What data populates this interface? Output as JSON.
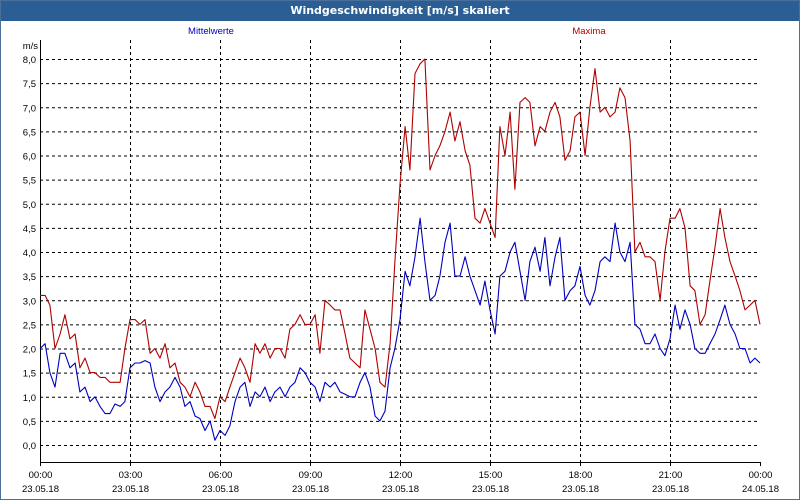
{
  "window": {
    "title": "Windgeschwindigkeit [m/s] skaliert"
  },
  "chart_data": {
    "type": "line",
    "title": "Windgeschwindigkeit [m/s] skaliert",
    "ylabel": "m/s",
    "xlabel": "",
    "ylim": [
      -0.2,
      8.3
    ],
    "yticks": [
      0.0,
      0.5,
      1.0,
      1.5,
      2.0,
      2.5,
      3.0,
      3.5,
      4.0,
      4.5,
      5.0,
      5.5,
      6.0,
      6.5,
      7.0,
      7.5,
      8.0
    ],
    "ytick_labels": [
      "0,0",
      "0,5",
      "1,0",
      "1,5",
      "2,0",
      "2,5",
      "3,0",
      "3,5",
      "4,0",
      "4,5",
      "5,0",
      "5,5",
      "6,0",
      "6,5",
      "7,0",
      "7,5",
      "8,0"
    ],
    "xlim": [
      0,
      24
    ],
    "xticks": [
      {
        "time": "00:00",
        "date": "23.05.18"
      },
      {
        "time": "03:00",
        "date": "23.05.18"
      },
      {
        "time": "06:00",
        "date": "23.05.18"
      },
      {
        "time": "09:00",
        "date": "23.05.18"
      },
      {
        "time": "12:00",
        "date": "23.05.18"
      },
      {
        "time": "15:00",
        "date": "23.05.18"
      },
      {
        "time": "18:00",
        "date": "23.05.18"
      },
      {
        "time": "21:00",
        "date": "23.05.18"
      },
      {
        "time": "00:00",
        "date": "24.05.18"
      }
    ],
    "grid": true,
    "x_hours": [
      0,
      0.17,
      0.33,
      0.5,
      0.67,
      0.83,
      1,
      1.17,
      1.33,
      1.5,
      1.67,
      1.83,
      2,
      2.17,
      2.33,
      2.5,
      2.67,
      2.83,
      3,
      3.17,
      3.33,
      3.5,
      3.67,
      3.83,
      4,
      4.17,
      4.33,
      4.5,
      4.67,
      4.83,
      5,
      5.17,
      5.33,
      5.5,
      5.67,
      5.83,
      6,
      6.17,
      6.33,
      6.5,
      6.67,
      6.83,
      7,
      7.17,
      7.33,
      7.5,
      7.67,
      7.83,
      8,
      8.17,
      8.33,
      8.5,
      8.67,
      8.83,
      9,
      9.17,
      9.33,
      9.5,
      9.67,
      9.83,
      10,
      10.17,
      10.33,
      10.5,
      10.67,
      10.83,
      11,
      11.17,
      11.33,
      11.5,
      11.67,
      11.83,
      12,
      12.17,
      12.33,
      12.5,
      12.67,
      12.83,
      13,
      13.17,
      13.33,
      13.5,
      13.67,
      13.83,
      14,
      14.17,
      14.33,
      14.5,
      14.67,
      14.83,
      15,
      15.17,
      15.33,
      15.5,
      15.67,
      15.83,
      16,
      16.17,
      16.33,
      16.5,
      16.67,
      16.83,
      17,
      17.17,
      17.33,
      17.5,
      17.67,
      17.83,
      18,
      18.17,
      18.33,
      18.5,
      18.67,
      18.83,
      19,
      19.17,
      19.33,
      19.5,
      19.67,
      19.83,
      20,
      20.17,
      20.33,
      20.5,
      20.67,
      20.83,
      21,
      21.17,
      21.33,
      21.5,
      21.67,
      21.83,
      22,
      22.17,
      22.33,
      22.5,
      22.67,
      22.83,
      23,
      23.17,
      23.33,
      23.5,
      23.67,
      23.83,
      24
    ],
    "series": [
      {
        "name": "Mittelwerte",
        "color": "#0000c0",
        "values": [
          2.0,
          2.1,
          1.5,
          1.2,
          1.9,
          1.9,
          1.6,
          1.7,
          1.1,
          1.2,
          0.9,
          1.0,
          0.8,
          0.65,
          0.65,
          0.85,
          0.8,
          0.9,
          1.6,
          1.7,
          1.7,
          1.75,
          1.7,
          1.2,
          0.9,
          1.1,
          1.2,
          1.4,
          1.2,
          0.8,
          0.9,
          0.6,
          0.55,
          0.3,
          0.5,
          0.1,
          0.3,
          0.2,
          0.4,
          0.9,
          1.2,
          1.3,
          0.8,
          1.1,
          1.0,
          1.2,
          0.9,
          1.1,
          1.2,
          1.0,
          1.2,
          1.3,
          1.6,
          1.5,
          1.3,
          1.2,
          0.9,
          1.3,
          1.2,
          1.3,
          1.1,
          1.05,
          1.0,
          1.0,
          1.3,
          1.5,
          1.2,
          0.6,
          0.5,
          0.7,
          1.6,
          2.0,
          2.6,
          3.6,
          3.3,
          3.9,
          4.7,
          3.8,
          3.0,
          3.1,
          3.5,
          4.2,
          4.6,
          3.5,
          3.5,
          3.9,
          3.5,
          3.2,
          2.9,
          3.4,
          2.8,
          2.3,
          3.5,
          3.6,
          4.0,
          4.2,
          3.6,
          3.0,
          3.8,
          4.1,
          3.6,
          4.3,
          3.3,
          3.9,
          4.3,
          3.0,
          3.2,
          3.3,
          3.7,
          3.1,
          2.9,
          3.2,
          3.8,
          3.9,
          3.8,
          4.6,
          4.0,
          3.8,
          4.2,
          2.5,
          2.4,
          2.1,
          2.1,
          2.3,
          2.0,
          1.85,
          2.2,
          2.9,
          2.4,
          2.8,
          2.5,
          2.0,
          1.9,
          1.9,
          2.1,
          2.3,
          2.6,
          2.9,
          2.5,
          2.3,
          2.0,
          2.0,
          1.7,
          1.8,
          1.7
        ]
      },
      {
        "name": "Maxima",
        "color": "#b00000",
        "values": [
          3.1,
          3.1,
          2.9,
          2.0,
          2.3,
          2.7,
          2.2,
          2.3,
          1.6,
          1.8,
          1.5,
          1.5,
          1.4,
          1.4,
          1.3,
          1.3,
          1.3,
          2.0,
          2.6,
          2.6,
          2.5,
          2.6,
          1.9,
          2.0,
          1.8,
          2.1,
          1.6,
          1.7,
          1.3,
          1.2,
          1.0,
          1.3,
          1.1,
          0.8,
          0.8,
          0.55,
          1.0,
          0.9,
          1.2,
          1.5,
          1.8,
          1.6,
          1.3,
          2.1,
          1.9,
          2.1,
          1.8,
          2.0,
          2.0,
          1.8,
          2.4,
          2.5,
          2.7,
          2.5,
          2.5,
          2.7,
          1.9,
          3.0,
          2.9,
          2.8,
          2.8,
          2.3,
          1.8,
          1.7,
          1.6,
          2.8,
          2.4,
          2.0,
          1.3,
          1.2,
          2.1,
          3.8,
          5.4,
          6.6,
          5.7,
          7.7,
          7.9,
          8.0,
          5.7,
          6.0,
          6.2,
          6.5,
          6.9,
          6.3,
          6.7,
          6.1,
          5.8,
          4.7,
          4.6,
          4.9,
          4.6,
          4.3,
          6.6,
          6.0,
          6.9,
          5.3,
          7.1,
          7.2,
          7.1,
          6.2,
          6.6,
          6.5,
          6.9,
          7.1,
          6.8,
          5.9,
          6.1,
          6.8,
          6.9,
          6.0,
          7.0,
          7.8,
          6.9,
          7.0,
          6.8,
          6.9,
          7.4,
          7.2,
          6.3,
          4.0,
          4.2,
          3.9,
          3.9,
          3.8,
          3.0,
          4.0,
          4.7,
          4.7,
          4.9,
          4.5,
          3.3,
          3.2,
          2.5,
          2.7,
          3.4,
          4.1,
          4.9,
          4.3,
          3.8,
          3.5,
          3.2,
          2.8,
          2.9,
          3.0,
          2.5
        ]
      }
    ]
  }
}
